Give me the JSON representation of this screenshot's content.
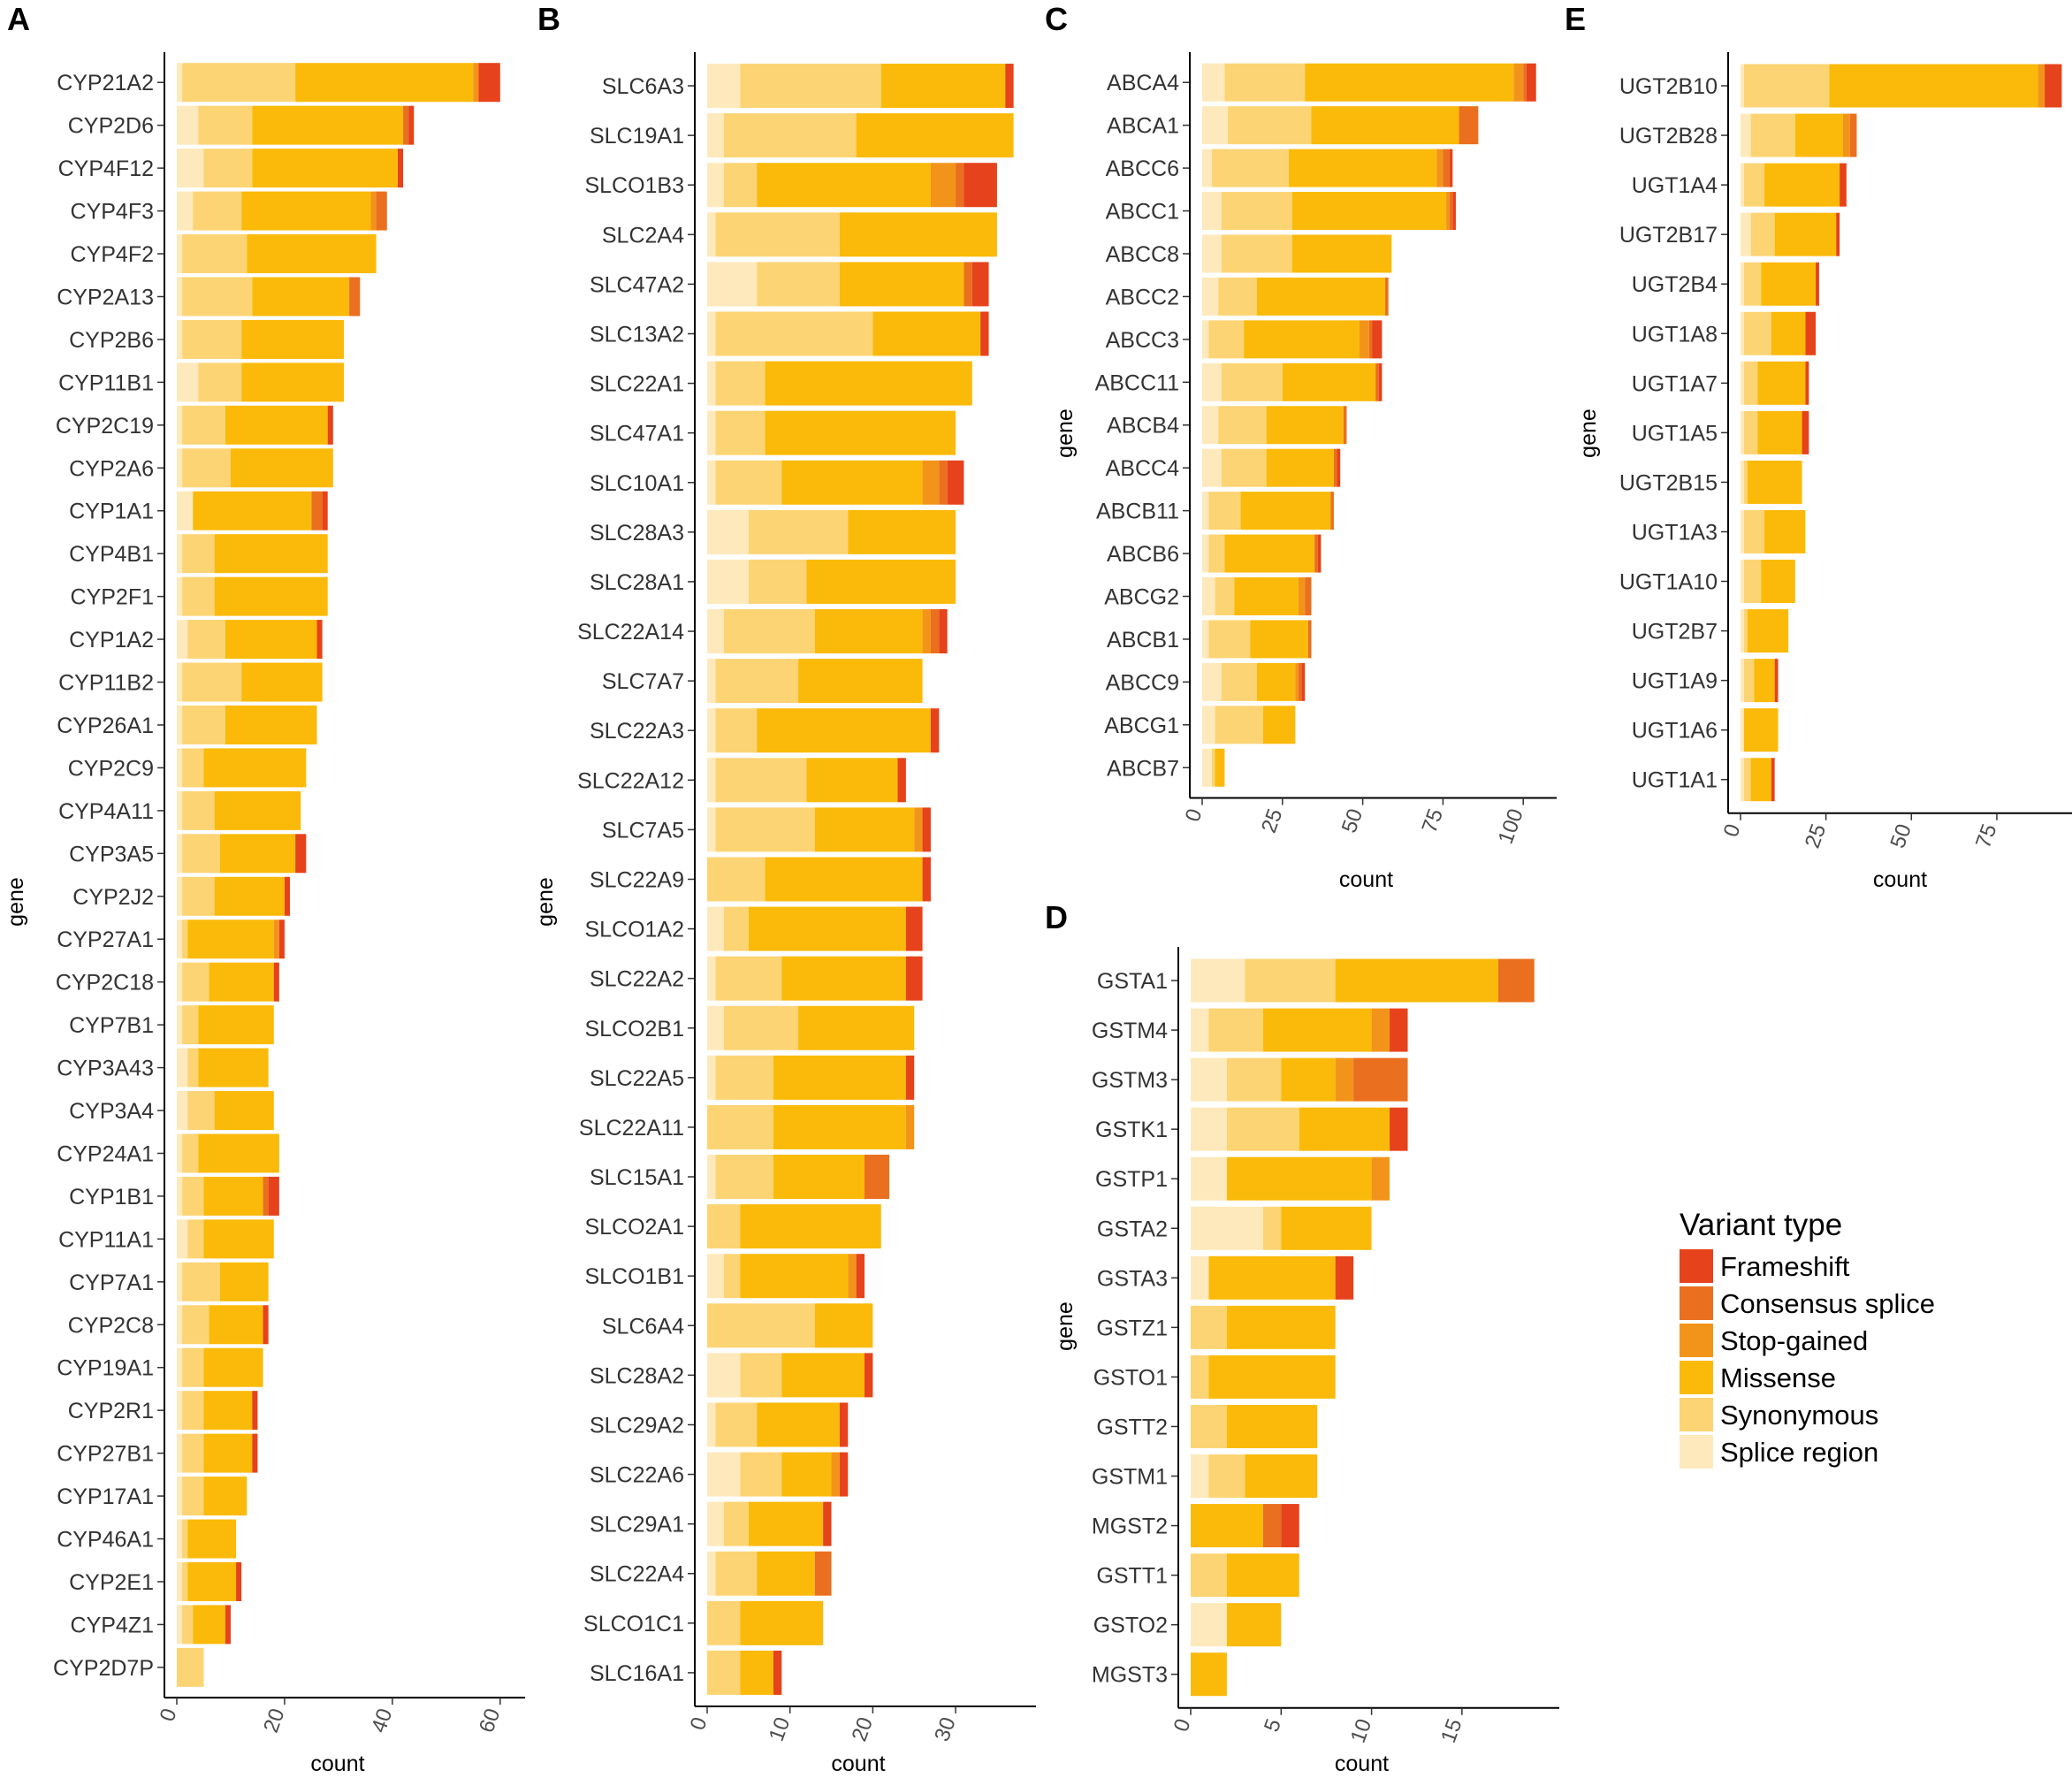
{
  "chart_data": [
    {
      "panel": "A",
      "type": "bar",
      "orientation": "horizontal",
      "stacked": true,
      "xlabel": "count",
      "ylabel": "gene",
      "xlim": [
        0,
        62
      ],
      "xticks": [
        0,
        20,
        40,
        60
      ],
      "categories": [
        "CYP21A2",
        "CYP2D6",
        "CYP4F12",
        "CYP4F3",
        "CYP4F2",
        "CYP2A13",
        "CYP2B6",
        "CYP11B1",
        "CYP2C19",
        "CYP2A6",
        "CYP1A1",
        "CYP4B1",
        "CYP2F1",
        "CYP1A2",
        "CYP11B2",
        "CYP26A1",
        "CYP2C9",
        "CYP4A11",
        "CYP3A5",
        "CYP2J2",
        "CYP27A1",
        "CYP2C18",
        "CYP7B1",
        "CYP3A43",
        "CYP3A4",
        "CYP24A1",
        "CYP1B1",
        "CYP11A1",
        "CYP7A1",
        "CYP2C8",
        "CYP19A1",
        "CYP2R1",
        "CYP27B1",
        "CYP17A1",
        "CYP46A1",
        "CYP2E1",
        "CYP4Z1",
        "CYP2D7P"
      ],
      "series": [
        {
          "name": "Splice region",
          "values": [
            1,
            4,
            5,
            3,
            1,
            1,
            1,
            4,
            1,
            1,
            3,
            1,
            1,
            2,
            1,
            1,
            1,
            1,
            1,
            1,
            1,
            1,
            1,
            2,
            2,
            1,
            1,
            2,
            1,
            1,
            1,
            1,
            1,
            1,
            1,
            1,
            1,
            0
          ]
        },
        {
          "name": "Synonymous",
          "values": [
            21,
            10,
            9,
            9,
            12,
            13,
            11,
            8,
            8,
            9,
            0,
            6,
            6,
            7,
            11,
            8,
            4,
            6,
            7,
            6,
            1,
            5,
            3,
            2,
            5,
            3,
            4,
            3,
            7,
            5,
            4,
            4,
            4,
            4,
            1,
            1,
            2,
            5
          ]
        },
        {
          "name": "Missense",
          "values": [
            33,
            28,
            27,
            24,
            24,
            18,
            19,
            19,
            19,
            19,
            22,
            21,
            21,
            17,
            15,
            17,
            19,
            16,
            14,
            13,
            16,
            12,
            14,
            13,
            11,
            15,
            11,
            13,
            9,
            10,
            11,
            9,
            9,
            8,
            9,
            9,
            6,
            0
          ]
        },
        {
          "name": "Stop-gained",
          "values": [
            1,
            0,
            0,
            1,
            0,
            0,
            0,
            0,
            0,
            0,
            0,
            0,
            0,
            0,
            0,
            0,
            0,
            0,
            0,
            0,
            1,
            0,
            0,
            0,
            0,
            0,
            0,
            0,
            0,
            0,
            0,
            0,
            0,
            0,
            0,
            0,
            0,
            0
          ]
        },
        {
          "name": "Consensus splice",
          "values": [
            0,
            1,
            0,
            2,
            0,
            2,
            0,
            0,
            0,
            0,
            2,
            0,
            0,
            0,
            0,
            0,
            0,
            0,
            0,
            0,
            0,
            0,
            0,
            0,
            0,
            0,
            1,
            0,
            0,
            0,
            0,
            0,
            0,
            0,
            0,
            0,
            0,
            0
          ]
        },
        {
          "name": "Frameshift",
          "values": [
            4,
            1,
            1,
            0,
            0,
            0,
            0,
            0,
            1,
            0,
            1,
            0,
            0,
            1,
            0,
            0,
            0,
            0,
            2,
            1,
            1,
            1,
            0,
            0,
            0,
            0,
            2,
            0,
            0,
            1,
            0,
            1,
            1,
            0,
            0,
            1,
            1,
            0
          ]
        }
      ]
    },
    {
      "panel": "B",
      "type": "bar",
      "orientation": "horizontal",
      "stacked": true,
      "xlabel": "count",
      "ylabel": "gene",
      "xlim": [
        0,
        38
      ],
      "xticks": [
        0,
        10,
        20,
        30
      ],
      "categories": [
        "SLC6A3",
        "SLC19A1",
        "SLCO1B3",
        "SLC2A4",
        "SLC47A2",
        "SLC13A2",
        "SLC22A1",
        "SLC47A1",
        "SLC10A1",
        "SLC28A3",
        "SLC28A1",
        "SLC22A14",
        "SLC7A7",
        "SLC22A3",
        "SLC22A12",
        "SLC7A5",
        "SLC22A9",
        "SLCO1A2",
        "SLC22A2",
        "SLCO2B1",
        "SLC22A5",
        "SLC22A11",
        "SLC15A1",
        "SLCO2A1",
        "SLCO1B1",
        "SLC6A4",
        "SLC28A2",
        "SLC29A2",
        "SLC22A6",
        "SLC29A1",
        "SLC22A4",
        "SLCO1C1",
        "SLC16A1"
      ],
      "series": [
        {
          "name": "Splice region",
          "values": [
            4,
            2,
            2,
            1,
            6,
            1,
            1,
            1,
            1,
            5,
            5,
            2,
            1,
            1,
            1,
            1,
            0,
            2,
            1,
            2,
            1,
            0,
            1,
            0,
            2,
            0,
            4,
            1,
            4,
            2,
            1,
            0,
            0
          ]
        },
        {
          "name": "Synonymous",
          "values": [
            17,
            16,
            4,
            15,
            10,
            19,
            6,
            6,
            8,
            12,
            7,
            11,
            10,
            5,
            11,
            12,
            7,
            3,
            8,
            9,
            7,
            8,
            7,
            4,
            2,
            13,
            5,
            5,
            5,
            3,
            5,
            4,
            4
          ]
        },
        {
          "name": "Missense",
          "values": [
            15,
            19,
            21,
            19,
            15,
            13,
            25,
            23,
            17,
            13,
            18,
            13,
            15,
            21,
            11,
            12,
            19,
            19,
            15,
            14,
            16,
            16,
            11,
            17,
            13,
            7,
            10,
            10,
            6,
            9,
            7,
            10,
            4
          ]
        },
        {
          "name": "Stop-gained",
          "values": [
            0,
            0,
            3,
            0,
            0,
            0,
            0,
            0,
            2,
            0,
            0,
            1,
            0,
            0,
            0,
            1,
            0,
            0,
            0,
            0,
            0,
            1,
            0,
            0,
            1,
            0,
            0,
            0,
            1,
            0,
            0,
            0,
            0
          ]
        },
        {
          "name": "Consensus splice",
          "values": [
            0,
            0,
            1,
            0,
            1,
            0,
            0,
            0,
            1,
            0,
            0,
            1,
            0,
            0,
            0,
            0,
            0,
            0,
            0,
            0,
            0,
            0,
            3,
            0,
            0,
            0,
            0,
            0,
            0,
            0,
            2,
            0,
            0
          ]
        },
        {
          "name": "Frameshift",
          "values": [
            1,
            0,
            4,
            0,
            2,
            1,
            0,
            0,
            2,
            0,
            0,
            1,
            0,
            1,
            1,
            1,
            1,
            2,
            2,
            0,
            1,
            0,
            0,
            0,
            1,
            0,
            1,
            1,
            1,
            1,
            0,
            0,
            1
          ]
        }
      ]
    },
    {
      "panel": "C",
      "type": "bar",
      "orientation": "horizontal",
      "stacked": true,
      "xlabel": "count",
      "ylabel": "gene",
      "xlim": [
        0,
        106
      ],
      "xticks": [
        0,
        25,
        50,
        75,
        100
      ],
      "categories": [
        "ABCA4",
        "ABCA1",
        "ABCC6",
        "ABCC1",
        "ABCC8",
        "ABCC2",
        "ABCC3",
        "ABCC11",
        "ABCB4",
        "ABCC4",
        "ABCB11",
        "ABCB6",
        "ABCG2",
        "ABCB1",
        "ABCC9",
        "ABCG1",
        "ABCB7"
      ],
      "series": [
        {
          "name": "Splice region",
          "values": [
            7,
            8,
            3,
            6,
            6,
            5,
            2,
            6,
            5,
            6,
            2,
            2,
            4,
            2,
            6,
            4,
            3
          ]
        },
        {
          "name": "Synonymous",
          "values": [
            25,
            26,
            24,
            22,
            22,
            12,
            11,
            19,
            15,
            14,
            10,
            5,
            6,
            13,
            11,
            15,
            1
          ]
        },
        {
          "name": "Missense",
          "values": [
            65,
            46,
            46,
            48,
            31,
            40,
            36,
            29,
            24,
            21,
            28,
            28,
            20,
            18,
            12,
            10,
            3
          ]
        },
        {
          "name": "Stop-gained",
          "values": [
            3,
            0,
            2,
            1,
            0,
            0,
            3,
            0,
            0,
            0,
            0,
            0,
            2,
            0,
            1,
            0,
            0
          ]
        },
        {
          "name": "Consensus splice",
          "values": [
            1,
            6,
            2,
            1,
            0,
            1,
            1,
            1,
            1,
            1,
            1,
            1,
            2,
            1,
            1,
            0,
            0
          ]
        },
        {
          "name": "Frameshift",
          "values": [
            3,
            0,
            1,
            1,
            0,
            0,
            3,
            1,
            0,
            1,
            0,
            1,
            0,
            0,
            1,
            0,
            0
          ]
        }
      ]
    },
    {
      "panel": "D",
      "type": "bar",
      "orientation": "horizontal",
      "stacked": true,
      "xlabel": "count",
      "ylabel": "gene",
      "xlim": [
        0,
        19.6
      ],
      "xticks": [
        0,
        5,
        10,
        15
      ],
      "categories": [
        "GSTA1",
        "GSTM4",
        "GSTM3",
        "GSTK1",
        "GSTP1",
        "GSTA2",
        "GSTA3",
        "GSTZ1",
        "GSTO1",
        "GSTT2",
        "GSTM1",
        "MGST2",
        "GSTT1",
        "GSTO2",
        "MGST3"
      ],
      "series": [
        {
          "name": "Splice region",
          "values": [
            3,
            1,
            2,
            2,
            2,
            4,
            1,
            0,
            0,
            0,
            1,
            0,
            0,
            2,
            0
          ]
        },
        {
          "name": "Synonymous",
          "values": [
            5,
            3,
            3,
            4,
            0,
            1,
            0,
            2,
            1,
            2,
            2,
            0,
            2,
            0,
            0
          ]
        },
        {
          "name": "Missense",
          "values": [
            9,
            6,
            3,
            5,
            8,
            5,
            7,
            6,
            7,
            5,
            4,
            4,
            4,
            3,
            2
          ]
        },
        {
          "name": "Stop-gained",
          "values": [
            0,
            1,
            1,
            0,
            1,
            0,
            0,
            0,
            0,
            0,
            0,
            0,
            0,
            0,
            0
          ]
        },
        {
          "name": "Consensus splice",
          "values": [
            2,
            0,
            3,
            0,
            0,
            0,
            0,
            0,
            0,
            0,
            0,
            1,
            0,
            0,
            0
          ]
        },
        {
          "name": "Frameshift",
          "values": [
            0,
            1,
            0,
            1,
            0,
            0,
            1,
            0,
            0,
            0,
            0,
            1,
            0,
            0,
            0
          ]
        }
      ]
    },
    {
      "panel": "E",
      "type": "bar",
      "orientation": "horizontal",
      "stacked": true,
      "xlabel": "count",
      "ylabel": "gene",
      "xlim": [
        0,
        97
      ],
      "xticks": [
        0,
        25,
        50,
        75
      ],
      "categories": [
        "UGT2B10",
        "UGT2B28",
        "UGT1A4",
        "UGT2B17",
        "UGT2B4",
        "UGT1A8",
        "UGT1A7",
        "UGT1A5",
        "UGT2B15",
        "UGT1A3",
        "UGT1A10",
        "UGT2B7",
        "UGT1A9",
        "UGT1A6",
        "UGT1A1"
      ],
      "series": [
        {
          "name": "Splice region",
          "values": [
            1,
            3,
            1,
            3,
            1,
            1,
            1,
            1,
            1,
            1,
            1,
            1,
            1,
            1,
            1
          ]
        },
        {
          "name": "Synonymous",
          "values": [
            25,
            13,
            6,
            7,
            5,
            8,
            4,
            4,
            1,
            6,
            5,
            1,
            3,
            0,
            2
          ]
        },
        {
          "name": "Missense",
          "values": [
            61,
            14,
            22,
            18,
            16,
            10,
            14,
            13,
            16,
            12,
            10,
            12,
            6,
            10,
            6
          ]
        },
        {
          "name": "Stop-gained",
          "values": [
            2,
            2,
            0,
            0,
            0,
            0,
            0,
            0,
            0,
            0,
            0,
            0,
            0,
            0,
            0
          ]
        },
        {
          "name": "Consensus splice",
          "values": [
            0,
            2,
            0,
            0,
            0,
            0,
            0,
            0,
            0,
            0,
            0,
            0,
            0,
            0,
            0
          ]
        },
        {
          "name": "Frameshift",
          "values": [
            5,
            0,
            2,
            1,
            1,
            3,
            1,
            2,
            0,
            0,
            0,
            0,
            1,
            0,
            1
          ]
        }
      ]
    }
  ],
  "legend": {
    "title": "Variant type",
    "items": [
      {
        "label": "Frameshift",
        "color": "#e6421b"
      },
      {
        "label": "Consensus splice",
        "color": "#ea6f1f"
      },
      {
        "label": "Stop-gained",
        "color": "#f3941a"
      },
      {
        "label": "Missense",
        "color": "#fbba09"
      },
      {
        "label": "Synonymous",
        "color": "#fdd474"
      },
      {
        "label": "Splice region",
        "color": "#fde9bb"
      }
    ]
  },
  "colors": {
    "Splice region": "#fde9bb",
    "Synonymous": "#fdd474",
    "Missense": "#fbba09",
    "Stop-gained": "#f3941a",
    "Consensus splice": "#ea6f1f",
    "Frameshift": "#e6421b"
  }
}
